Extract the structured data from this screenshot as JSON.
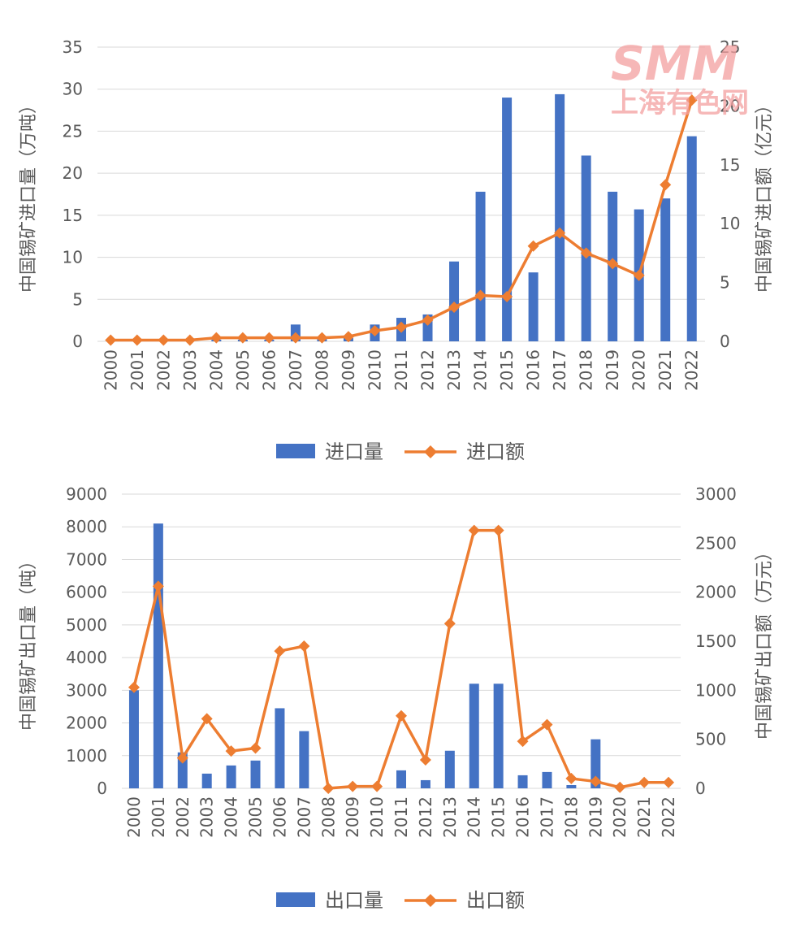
{
  "watermark": {
    "logo": "SMM",
    "sub": "上海有色网"
  },
  "chart_data": [
    {
      "type": "bar+line",
      "categories": [
        "2000",
        "2001",
        "2002",
        "2003",
        "2004",
        "2005",
        "2006",
        "2007",
        "2008",
        "2009",
        "2010",
        "2011",
        "2012",
        "2013",
        "2014",
        "2015",
        "2016",
        "2017",
        "2018",
        "2019",
        "2020",
        "2021",
        "2022"
      ],
      "y_left_label": "中国锡矿进口量（万吨）",
      "y_right_label": "中国锡矿进口额（亿元）",
      "y_left_range": [
        0,
        35
      ],
      "y_left_ticks": [
        0,
        5,
        10,
        15,
        20,
        25,
        30,
        35
      ],
      "y_right_range": [
        0,
        25
      ],
      "y_right_ticks": [
        0,
        5,
        10,
        15,
        20,
        25
      ],
      "grid": true,
      "legend_position": "bottom",
      "colors": {
        "bar": "#4472c4",
        "line": "#ed7d31"
      },
      "series": [
        {
          "name": "进口量",
          "type": "bar",
          "axis": "left",
          "values": [
            0,
            0,
            0,
            0,
            0.2,
            0.2,
            0.2,
            2.0,
            0.3,
            0.4,
            2.0,
            2.8,
            3.2,
            9.5,
            17.8,
            29.0,
            8.2,
            29.4,
            22.1,
            17.8,
            15.7,
            17.0,
            24.4
          ]
        },
        {
          "name": "进口额",
          "type": "line",
          "axis": "right",
          "values": [
            0.1,
            0.1,
            0.1,
            0.1,
            0.3,
            0.3,
            0.3,
            0.3,
            0.3,
            0.4,
            0.9,
            1.2,
            1.8,
            2.9,
            3.9,
            3.8,
            8.1,
            9.2,
            7.5,
            6.6,
            5.6,
            13.3,
            20.5
          ]
        }
      ]
    },
    {
      "type": "bar+line",
      "categories": [
        "2000",
        "2001",
        "2002",
        "2003",
        "2004",
        "2005",
        "2006",
        "2007",
        "2008",
        "2009",
        "2010",
        "2011",
        "2012",
        "2013",
        "2014",
        "2015",
        "2016",
        "2017",
        "2018",
        "2019",
        "2020",
        "2021",
        "2022"
      ],
      "y_left_label": "中国锡矿出口量（吨）",
      "y_right_label": "中国锡矿出口额（万元）",
      "y_left_range": [
        0,
        9000
      ],
      "y_left_ticks": [
        0,
        1000,
        2000,
        3000,
        4000,
        5000,
        6000,
        7000,
        8000,
        9000
      ],
      "y_right_range": [
        0,
        3000
      ],
      "y_right_ticks": [
        0,
        500,
        1000,
        1500,
        2000,
        2500,
        3000
      ],
      "grid": true,
      "legend_position": "bottom",
      "colors": {
        "bar": "#4472c4",
        "line": "#ed7d31"
      },
      "series": [
        {
          "name": "出口量",
          "type": "bar",
          "axis": "left",
          "values": [
            3000,
            8100,
            1100,
            450,
            700,
            850,
            2450,
            1750,
            0,
            0,
            0,
            550,
            250,
            1150,
            3200,
            3200,
            400,
            500,
            100,
            1500,
            0,
            0,
            0
          ]
        },
        {
          "name": "出口额",
          "type": "line",
          "axis": "right",
          "values": [
            1030,
            2060,
            310,
            710,
            380,
            410,
            1400,
            1450,
            0,
            20,
            20,
            740,
            290,
            1680,
            2630,
            2630,
            480,
            650,
            100,
            70,
            10,
            60,
            60
          ]
        }
      ]
    }
  ]
}
